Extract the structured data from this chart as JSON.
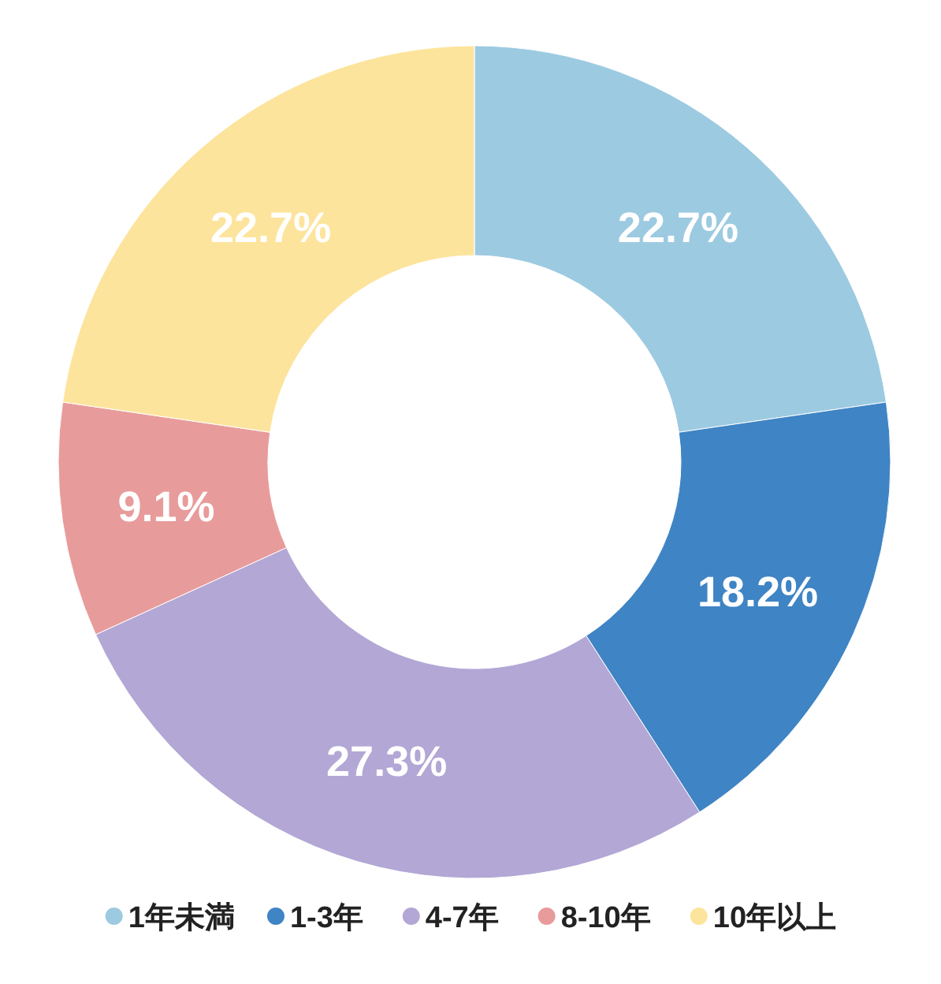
{
  "chart_data": {
    "type": "donut",
    "categories": [
      "1年未満",
      "1-3年",
      "4-7年",
      "8-10年",
      "10年以上"
    ],
    "values": [
      22.7,
      18.2,
      27.3,
      9.1,
      22.7
    ],
    "value_labels": [
      "22.7%",
      "18.2%",
      "27.3%",
      "9.1%",
      "22.7%"
    ],
    "colors": [
      "#9ccae1",
      "#3f84c4",
      "#b2a7d5",
      "#e89b9b",
      "#fde49c"
    ],
    "legend": "bottom"
  }
}
